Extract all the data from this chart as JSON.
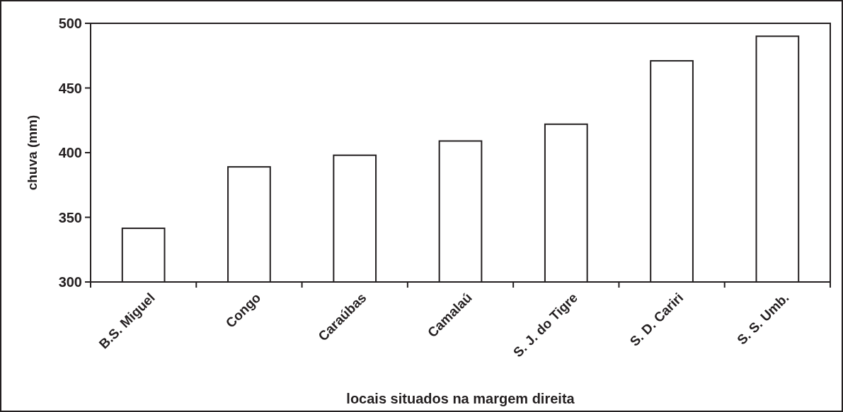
{
  "chart_data": {
    "type": "bar",
    "xlabel": "locais situados na margem direita",
    "ylabel": "chuva (mm)",
    "categories": [
      "B.S. Miguel",
      "Congo",
      "Caraúbas",
      "Camalaú",
      "S. J. do Tigre",
      "S. D. Cariri",
      "S. S. Umb."
    ],
    "values": [
      341.5,
      389,
      398,
      409,
      422,
      471,
      490
    ],
    "color": "#ffffff",
    "ylim": [
      300,
      500
    ],
    "yticks": [
      300,
      350,
      400,
      450,
      500
    ],
    "grid": false
  }
}
